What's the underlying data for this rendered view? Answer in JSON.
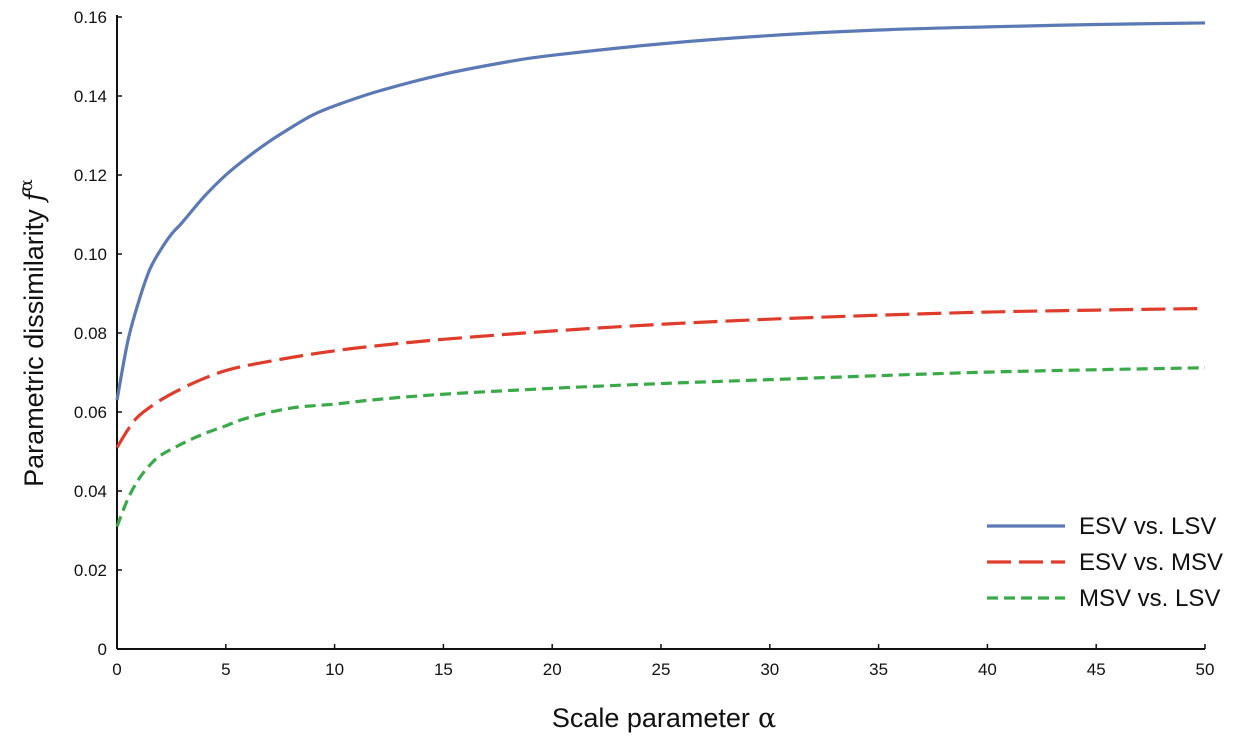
{
  "chart_data": {
    "type": "line",
    "title": "",
    "xlabel": "Scale parameter",
    "xlabel_symbol": "α",
    "ylabel": "Parametric dissimilarity",
    "ylabel_symbol": "f",
    "ylabel_superscript": "α",
    "xlim": [
      0,
      50
    ],
    "ylim": [
      0,
      0.16
    ],
    "x_ticks": [
      "0",
      "5",
      "10",
      "15",
      "20",
      "25",
      "30",
      "35",
      "40",
      "45",
      "50"
    ],
    "y_ticks": [
      "0",
      "0.02",
      "0.04",
      "0.06",
      "0.08",
      "0.10",
      "0.12",
      "0.14",
      "0.16"
    ],
    "grid": false,
    "legend_position": "bottom-right",
    "series": [
      {
        "name": "ESV vs. LSV",
        "color": "#5b79b5",
        "dash": "solid",
        "x": [
          0,
          0.5,
          1,
          1.5,
          2,
          2.5,
          3,
          4,
          5,
          6,
          7,
          8,
          9,
          10,
          12,
          15,
          18,
          20,
          25,
          30,
          35,
          40,
          45,
          50
        ],
        "y": [
          0.063,
          0.078,
          0.088,
          0.096,
          0.101,
          0.105,
          0.108,
          0.1145,
          0.12,
          0.1245,
          0.1285,
          0.132,
          0.1352,
          0.1375,
          0.1412,
          0.1455,
          0.1487,
          0.1503,
          0.1532,
          0.1553,
          0.1567,
          0.1575,
          0.1581,
          0.1585
        ]
      },
      {
        "name": "ESV vs. MSV",
        "color": "#e03c2c",
        "dash": "long-dash",
        "x": [
          0,
          0.5,
          1,
          2,
          3,
          4,
          5,
          6,
          8,
          10,
          12,
          15,
          20,
          25,
          30,
          35,
          40,
          45,
          50
        ],
        "y": [
          0.051,
          0.0555,
          0.059,
          0.063,
          0.066,
          0.0685,
          0.0705,
          0.0718,
          0.0738,
          0.0755,
          0.0768,
          0.0784,
          0.0805,
          0.0822,
          0.0835,
          0.0845,
          0.0853,
          0.0858,
          0.0862
        ]
      },
      {
        "name": "MSV vs. LSV",
        "color": "#3aaa49",
        "dash": "short-dash",
        "x": [
          0,
          0.5,
          1,
          1.5,
          2,
          3,
          4,
          5,
          6,
          8,
          10,
          12,
          15,
          20,
          25,
          30,
          35,
          40,
          45,
          50
        ],
        "y": [
          0.031,
          0.038,
          0.043,
          0.0465,
          0.049,
          0.052,
          0.0545,
          0.0565,
          0.0585,
          0.061,
          0.062,
          0.0632,
          0.0645,
          0.066,
          0.0672,
          0.0682,
          0.0692,
          0.0701,
          0.0707,
          0.0712
        ]
      }
    ]
  }
}
